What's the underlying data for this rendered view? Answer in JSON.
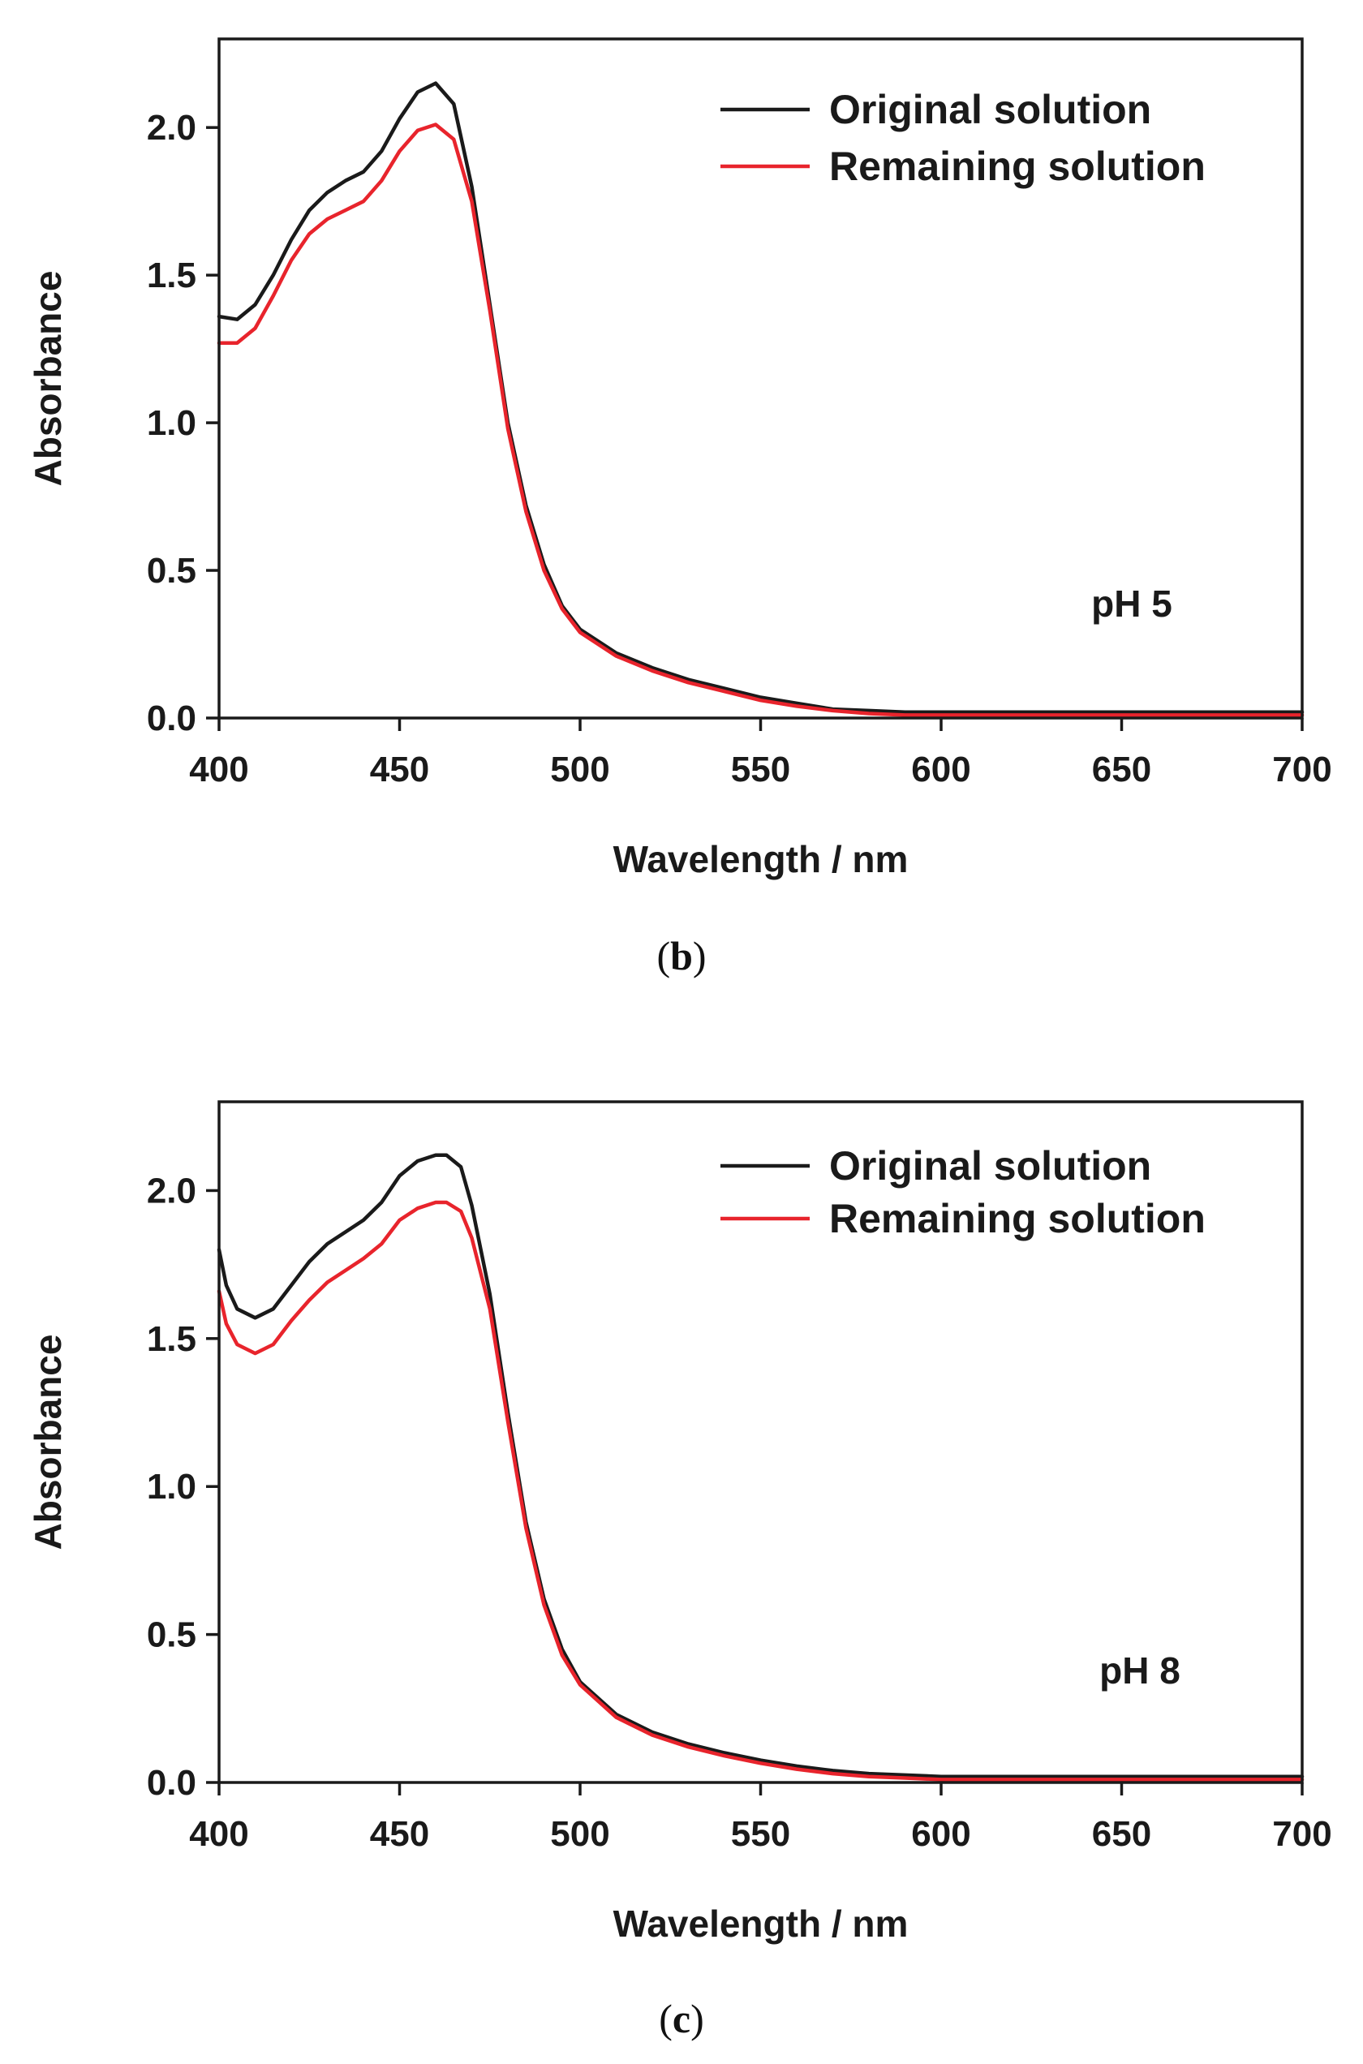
{
  "chart_data": [
    {
      "type": "line",
      "panel_label": "b",
      "annotation": "pH 5",
      "xlabel": "Wavelength / nm",
      "ylabel": "Absorbance",
      "xlim": [
        400,
        700
      ],
      "ylim": [
        0,
        2.3
      ],
      "xticks": [
        400,
        450,
        500,
        550,
        600,
        650,
        700
      ],
      "yticks": [
        0.0,
        0.5,
        1.0,
        1.5,
        2.0
      ],
      "ytick_labels": [
        "0.0",
        "0.5",
        "1.0",
        "1.5",
        "2.0"
      ],
      "legend_position": "top-right",
      "series": [
        {
          "name": "Original solution",
          "color": "#1a1a1a",
          "x": [
            400,
            405,
            410,
            415,
            420,
            425,
            430,
            435,
            440,
            445,
            450,
            455,
            460,
            465,
            470,
            475,
            480,
            485,
            490,
            495,
            500,
            510,
            520,
            530,
            540,
            550,
            560,
            570,
            580,
            590,
            600,
            650,
            700
          ],
          "y": [
            1.36,
            1.35,
            1.4,
            1.5,
            1.62,
            1.72,
            1.78,
            1.82,
            1.85,
            1.92,
            2.03,
            2.12,
            2.15,
            2.08,
            1.8,
            1.4,
            1.0,
            0.72,
            0.52,
            0.38,
            0.3,
            0.22,
            0.17,
            0.13,
            0.1,
            0.07,
            0.05,
            0.03,
            0.025,
            0.02,
            0.02,
            0.02,
            0.02
          ]
        },
        {
          "name": "Remaining solution",
          "color": "#e8242c",
          "x": [
            400,
            405,
            410,
            415,
            420,
            425,
            430,
            435,
            440,
            445,
            450,
            455,
            460,
            465,
            470,
            475,
            480,
            485,
            490,
            495,
            500,
            510,
            520,
            530,
            540,
            550,
            560,
            570,
            580,
            590,
            600,
            650,
            700
          ],
          "y": [
            1.27,
            1.27,
            1.32,
            1.43,
            1.55,
            1.64,
            1.69,
            1.72,
            1.75,
            1.82,
            1.92,
            1.99,
            2.01,
            1.96,
            1.75,
            1.38,
            0.98,
            0.7,
            0.5,
            0.37,
            0.29,
            0.21,
            0.16,
            0.12,
            0.09,
            0.06,
            0.04,
            0.025,
            0.015,
            0.01,
            0.01,
            0.01,
            0.01
          ]
        }
      ]
    },
    {
      "type": "line",
      "panel_label": "c",
      "annotation": "pH 8",
      "xlabel": "Wavelength / nm",
      "ylabel": "Absorbance",
      "xlim": [
        400,
        700
      ],
      "ylim": [
        0,
        2.3
      ],
      "xticks": [
        400,
        450,
        500,
        550,
        600,
        650,
        700
      ],
      "yticks": [
        0.0,
        0.5,
        1.0,
        1.5,
        2.0
      ],
      "ytick_labels": [
        "0.0",
        "0.5",
        "1.0",
        "1.5",
        "2.0"
      ],
      "legend_position": "top-right",
      "series": [
        {
          "name": "Original solution",
          "color": "#1a1a1a",
          "x": [
            400,
            402,
            405,
            410,
            415,
            420,
            425,
            430,
            435,
            440,
            445,
            450,
            455,
            460,
            463,
            467,
            470,
            475,
            480,
            485,
            490,
            495,
            500,
            510,
            520,
            530,
            540,
            550,
            560,
            570,
            580,
            590,
            600,
            650,
            700
          ],
          "y": [
            1.8,
            1.68,
            1.6,
            1.57,
            1.6,
            1.68,
            1.76,
            1.82,
            1.86,
            1.9,
            1.96,
            2.05,
            2.1,
            2.12,
            2.12,
            2.08,
            1.95,
            1.65,
            1.25,
            0.88,
            0.62,
            0.45,
            0.34,
            0.23,
            0.17,
            0.13,
            0.1,
            0.075,
            0.055,
            0.04,
            0.03,
            0.025,
            0.02,
            0.02,
            0.02
          ]
        },
        {
          "name": "Remaining solution",
          "color": "#e8242c",
          "x": [
            400,
            402,
            405,
            410,
            415,
            420,
            425,
            430,
            435,
            440,
            445,
            450,
            455,
            460,
            463,
            467,
            470,
            475,
            480,
            485,
            490,
            495,
            500,
            510,
            520,
            530,
            540,
            550,
            560,
            570,
            580,
            590,
            600,
            650,
            700
          ],
          "y": [
            1.66,
            1.55,
            1.48,
            1.45,
            1.48,
            1.56,
            1.63,
            1.69,
            1.73,
            1.77,
            1.82,
            1.9,
            1.94,
            1.96,
            1.96,
            1.93,
            1.84,
            1.6,
            1.22,
            0.86,
            0.6,
            0.43,
            0.33,
            0.22,
            0.16,
            0.12,
            0.09,
            0.065,
            0.045,
            0.03,
            0.02,
            0.015,
            0.01,
            0.01,
            0.01
          ]
        }
      ]
    }
  ]
}
